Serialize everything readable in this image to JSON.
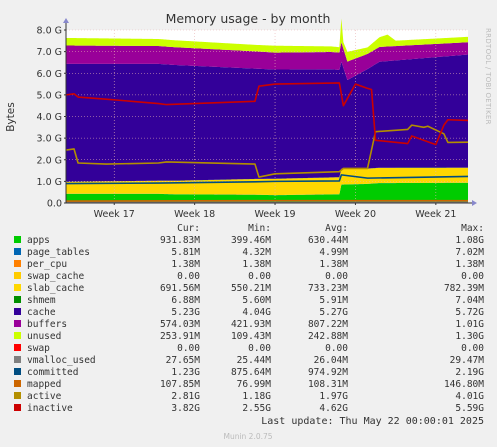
{
  "chart_data": {
    "type": "area",
    "title": "Memory usage - by month",
    "ylabel": "Bytes",
    "xlabel": "",
    "side_label": "RRDTOOL / TOBI OETIKER",
    "y_ticks": [
      "0.0",
      "1.0 G",
      "2.0 G",
      "3.0 G",
      "4.0 G",
      "5.0 G",
      "6.0 G",
      "7.0 G",
      "8.0 G"
    ],
    "ylim": [
      0,
      8
    ],
    "x_ticks": [
      "Week 17",
      "Week 18",
      "Week 19",
      "Week 20",
      "Week 21"
    ],
    "x_tick_positions": [
      0.12,
      0.32,
      0.52,
      0.72,
      0.92
    ],
    "grid": true,
    "legend_placement": "bottom",
    "columns": [
      "Cur:",
      "Min:",
      "Avg:",
      "Max:"
    ],
    "series": [
      {
        "name": "apps",
        "color": "#00cc00",
        "kind": "stack",
        "cur": "931.83M",
        "min": "399.46M",
        "avg": "630.44M",
        "max": "1.08G",
        "x": [
          0,
          0.23,
          0.27,
          0.47,
          0.52,
          0.68,
          0.685,
          0.75,
          0.78,
          1
        ],
        "values": [
          0.42,
          0.42,
          0.4,
          0.38,
          0.36,
          0.4,
          0.85,
          0.88,
          0.92,
          0.93
        ]
      },
      {
        "name": "page_tables",
        "color": "#0066b3",
        "kind": "stack",
        "cur": "5.81M",
        "min": "4.32M",
        "avg": "4.99M",
        "max": "7.02M",
        "x": [
          0,
          1
        ],
        "values": [
          0.005,
          0.006
        ]
      },
      {
        "name": "per_cpu",
        "color": "#ff8000",
        "kind": "stack",
        "cur": "1.38M",
        "min": "1.38M",
        "avg": "1.38M",
        "max": "1.38M",
        "x": [
          0,
          1
        ],
        "values": [
          0.0014,
          0.0014
        ]
      },
      {
        "name": "swap_cache",
        "color": "#ffcc00",
        "kind": "stack",
        "cur": "0.00",
        "min": "0.00",
        "avg": "0.00",
        "max": "0.00",
        "x": [
          0,
          1
        ],
        "values": [
          0,
          0
        ]
      },
      {
        "name": "slab_cache",
        "color": "#ffd700",
        "kind": "stack",
        "cur": "691.56M",
        "min": "550.21M",
        "avg": "733.23M",
        "max": "782.39M",
        "x": [
          0,
          0.23,
          0.47,
          0.52,
          0.68,
          0.685,
          0.75,
          1
        ],
        "values": [
          0.55,
          0.6,
          0.72,
          0.75,
          0.78,
          0.72,
          0.7,
          0.69
        ]
      },
      {
        "name": "shmem",
        "color": "#008f00",
        "kind": "stack",
        "cur": "6.88M",
        "min": "5.60M",
        "avg": "5.91M",
        "max": "7.04M",
        "x": [
          0,
          1
        ],
        "values": [
          0.006,
          0.007
        ]
      },
      {
        "name": "cache",
        "color": "#330099",
        "kind": "stack",
        "cur": "5.23G",
        "min": "4.04G",
        "avg": "5.27G",
        "max": "5.72G",
        "x": [
          0,
          0.23,
          0.47,
          0.52,
          0.66,
          0.685,
          0.7,
          0.75,
          0.78,
          1
        ],
        "values": [
          5.45,
          5.4,
          5.1,
          5.05,
          5.0,
          4.95,
          4.1,
          4.6,
          4.9,
          5.23
        ]
      },
      {
        "name": "buffers",
        "color": "#990099",
        "kind": "stack",
        "cur": "574.03M",
        "min": "421.93M",
        "avg": "807.22M",
        "max": "1.01G",
        "x": [
          0,
          0.47,
          0.52,
          0.68,
          0.685,
          0.75,
          1
        ],
        "values": [
          0.85,
          0.8,
          0.78,
          0.8,
          0.9,
          0.7,
          0.57
        ]
      },
      {
        "name": "unused",
        "color": "#ccff00",
        "kind": "stack",
        "cur": "253.91M",
        "min": "109.43M",
        "avg": "242.88M",
        "max": "1.30G",
        "x": [
          0,
          0.47,
          0.52,
          0.68,
          0.685,
          0.69,
          0.7,
          0.75,
          0.8,
          0.82,
          1
        ],
        "values": [
          0.35,
          0.3,
          0.32,
          0.25,
          1.1,
          0.3,
          0.45,
          0.3,
          0.55,
          0.25,
          0.25
        ]
      },
      {
        "name": "swap",
        "color": "#ff0000",
        "kind": "stack",
        "cur": "0.00",
        "min": "0.00",
        "avg": "0.00",
        "max": "0.00",
        "x": [
          0,
          1
        ],
        "values": [
          0,
          0
        ]
      },
      {
        "name": "vmalloc_used",
        "color": "#808080",
        "kind": "line",
        "cur": "27.65M",
        "min": "25.44M",
        "avg": "26.04M",
        "max": "29.47M",
        "x": [
          0,
          1
        ],
        "values": [
          0.027,
          0.028
        ]
      },
      {
        "name": "committed",
        "color": "#004d80",
        "kind": "line",
        "cur": "1.23G",
        "min": "875.64M",
        "avg": "974.92M",
        "max": "2.19G",
        "x": [
          0,
          0.23,
          0.47,
          0.52,
          0.68,
          0.685,
          0.75,
          1
        ],
        "values": [
          0.9,
          0.92,
          0.98,
          1.0,
          1.02,
          1.3,
          1.15,
          1.23
        ]
      },
      {
        "name": "mapped",
        "color": "#cc6600",
        "kind": "line",
        "cur": "107.85M",
        "min": "76.99M",
        "avg": "108.31M",
        "max": "146.80M",
        "x": [
          0,
          0.5,
          1
        ],
        "values": [
          0.09,
          0.11,
          0.108
        ]
      },
      {
        "name": "active",
        "color": "#b38f00",
        "kind": "line",
        "cur": "2.81G",
        "min": "1.18G",
        "avg": "1.97G",
        "max": "4.01G",
        "x": [
          0,
          0.02,
          0.03,
          0.1,
          0.23,
          0.25,
          0.47,
          0.48,
          0.52,
          0.68,
          0.69,
          0.75,
          0.77,
          0.85,
          0.86,
          0.89,
          0.9,
          0.94,
          0.95,
          1
        ],
        "values": [
          2.45,
          2.5,
          1.85,
          1.8,
          1.85,
          1.9,
          1.8,
          1.2,
          1.35,
          1.45,
          1.6,
          1.6,
          3.3,
          3.4,
          3.6,
          3.5,
          3.55,
          3.2,
          2.8,
          2.81
        ]
      },
      {
        "name": "inactive",
        "color": "#cc0000",
        "kind": "line",
        "cur": "3.82G",
        "min": "2.55G",
        "avg": "4.62G",
        "max": "5.59G",
        "x": [
          0,
          0.02,
          0.03,
          0.1,
          0.23,
          0.25,
          0.47,
          0.48,
          0.52,
          0.68,
          0.69,
          0.72,
          0.75,
          0.76,
          0.77,
          0.85,
          0.86,
          0.92,
          0.94,
          0.95,
          1
        ],
        "values": [
          5.0,
          5.05,
          4.9,
          4.8,
          4.6,
          4.55,
          4.7,
          5.4,
          5.5,
          5.55,
          4.5,
          5.5,
          5.3,
          5.25,
          2.9,
          2.75,
          3.1,
          2.7,
          3.6,
          3.85,
          3.82
        ]
      }
    ]
  },
  "footer": {
    "last_update": "Last update: Thu May 22 00:00:01 2025",
    "version": "Munin 2.0.75"
  }
}
